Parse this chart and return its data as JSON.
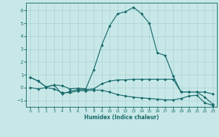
{
  "xlabel": "Humidex (Indice chaleur)",
  "background_color": "#c8e8e8",
  "line_color": "#1a6b6b",
  "grid_color": "#a8d0d0",
  "xlim": [
    -0.5,
    23.5
  ],
  "ylim": [
    -1.5,
    6.6
  ],
  "yticks": [
    -1,
    0,
    1,
    2,
    3,
    4,
    5,
    6
  ],
  "xticks": [
    0,
    1,
    2,
    3,
    4,
    5,
    6,
    7,
    8,
    9,
    10,
    11,
    12,
    13,
    14,
    15,
    16,
    17,
    18,
    19,
    20,
    21,
    22,
    23
  ],
  "series": [
    {
      "x": [
        0,
        1,
        2,
        3,
        4,
        5,
        6,
        7,
        8,
        9,
        10,
        11,
        12,
        13,
        14,
        15,
        16,
        17,
        18,
        19,
        20,
        21,
        22,
        23
      ],
      "y": [
        0.8,
        0.5,
        0.05,
        0.2,
        0.15,
        -0.1,
        -0.05,
        -0.1,
        1.4,
        3.3,
        4.8,
        5.75,
        5.9,
        6.25,
        5.75,
        5.0,
        2.7,
        2.5,
        0.9,
        -0.35,
        -0.35,
        -0.35,
        -0.75,
        -1.3
      ]
    },
    {
      "x": [
        0,
        1,
        2,
        3,
        4,
        5,
        6,
        7,
        8,
        9,
        10,
        11,
        12,
        13,
        14,
        15,
        16,
        17,
        18,
        19,
        20,
        21,
        22,
        23
      ],
      "y": [
        0.8,
        0.5,
        0.05,
        0.2,
        -0.5,
        -0.3,
        -0.15,
        -0.15,
        -0.1,
        0.3,
        0.5,
        0.6,
        0.6,
        0.65,
        0.65,
        0.65,
        0.65,
        0.65,
        0.65,
        -0.35,
        -0.35,
        -0.35,
        -0.35,
        -0.5
      ]
    },
    {
      "x": [
        0,
        1,
        2,
        3,
        4,
        5,
        6,
        7,
        8,
        9,
        10,
        11,
        12,
        13,
        14,
        15,
        16,
        17,
        18,
        19,
        20,
        21,
        22,
        23
      ],
      "y": [
        0.0,
        -0.1,
        0.0,
        -0.1,
        -0.4,
        -0.4,
        -0.25,
        -0.25,
        -0.2,
        -0.2,
        -0.35,
        -0.55,
        -0.65,
        -0.75,
        -0.8,
        -0.85,
        -0.9,
        -0.95,
        -0.95,
        -0.85,
        -0.65,
        -0.6,
        -1.2,
        -1.38
      ]
    }
  ]
}
